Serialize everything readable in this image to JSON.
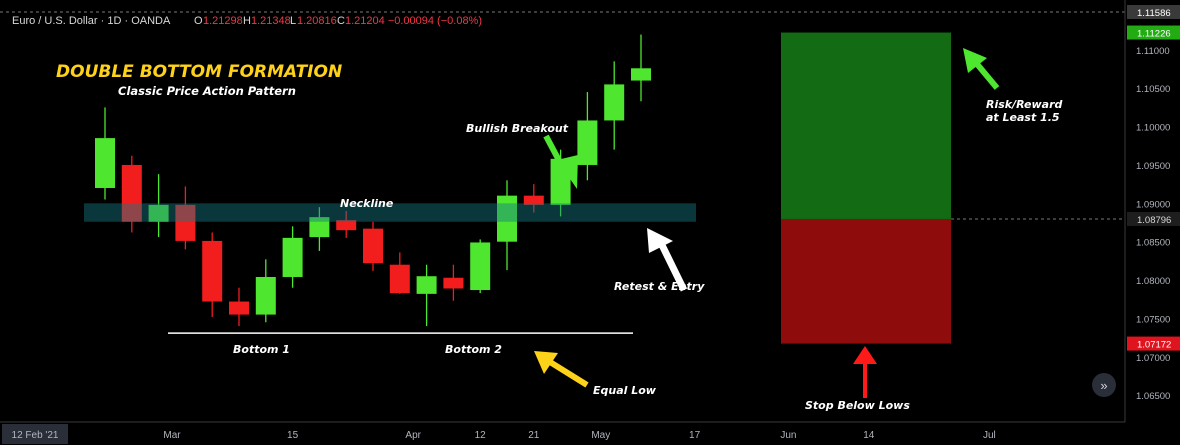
{
  "header": {
    "symbol": "Euro / U.S. Dollar · 1D · OANDA",
    "o_label": "O",
    "o_value": "1.21298",
    "h_label": "H",
    "h_value": "1.21348",
    "l_label": "L",
    "l_value": "1.20816",
    "c_label": "C",
    "c_value": "1.21204 −0.00094 (−0.08%)"
  },
  "colors": {
    "background": "#000000",
    "bull": "#4ee62f",
    "bear": "#f21d1d",
    "neckline_zone": "#137a84",
    "profit_zone": "#136b13",
    "loss_zone": "#8f0c0c",
    "title_yellow": "#ffd21a"
  },
  "chart_data": {
    "type": "candlestick",
    "title": "DOUBLE BOTTOM FORMATION",
    "subtitle": "Classic Price Action Pattern",
    "ylim": [
      1.0615,
      1.1165
    ],
    "y_ticks": [
      1.065,
      1.07,
      1.075,
      1.08,
      1.085,
      1.09,
      1.095,
      1.1,
      1.105,
      1.11
    ],
    "y_tick_labels": [
      "1.06500",
      "1.07000",
      "1.07500",
      "1.08000",
      "1.08500",
      "1.09000",
      "1.09500",
      "1.10000",
      "1.10500",
      "1.11000"
    ],
    "price_tags": [
      {
        "value": 1.11586,
        "label": "1.11586",
        "style": "top"
      },
      {
        "value": 1.11226,
        "label": "1.11226",
        "style": "green"
      },
      {
        "value": 1.08796,
        "label": "1.08796",
        "style": "dark"
      },
      {
        "value": 1.07172,
        "label": "1.07172",
        "style": "red"
      }
    ],
    "x_ticks": [
      {
        "index": 0,
        "label": "12 Feb '21",
        "boxed": true
      },
      {
        "index": 2.5,
        "label": "Mar"
      },
      {
        "index": 7,
        "label": "15"
      },
      {
        "index": 11.5,
        "label": "Apr"
      },
      {
        "index": 14,
        "label": "12"
      },
      {
        "index": 16,
        "label": "21"
      },
      {
        "index": 18.5,
        "label": "May"
      },
      {
        "index": 22,
        "label": "17"
      },
      {
        "index": 25.5,
        "label": "Jun"
      },
      {
        "index": 28.5,
        "label": "14"
      },
      {
        "index": 33,
        "label": "Jul"
      }
    ],
    "candles": [
      {
        "o": 1.092,
        "h": 1.1025,
        "l": 1.0905,
        "c": 1.0985
      },
      {
        "o": 1.095,
        "h": 1.0962,
        "l": 1.0862,
        "c": 1.0876
      },
      {
        "o": 1.0876,
        "h": 1.0938,
        "l": 1.0856,
        "c": 1.0898
      },
      {
        "o": 1.0898,
        "h": 1.0922,
        "l": 1.084,
        "c": 1.0851
      },
      {
        "o": 1.0851,
        "h": 1.0862,
        "l": 1.0752,
        "c": 1.0772
      },
      {
        "o": 1.0772,
        "h": 1.079,
        "l": 1.074,
        "c": 1.0755
      },
      {
        "o": 1.0755,
        "h": 1.0827,
        "l": 1.0745,
        "c": 1.0804
      },
      {
        "o": 1.0804,
        "h": 1.087,
        "l": 1.079,
        "c": 1.0855
      },
      {
        "o": 1.0856,
        "h": 1.0895,
        "l": 1.0838,
        "c": 1.0882
      },
      {
        "o": 1.0878,
        "h": 1.089,
        "l": 1.0855,
        "c": 1.0865
      },
      {
        "o": 1.0867,
        "h": 1.0876,
        "l": 1.0812,
        "c": 1.0822
      },
      {
        "o": 1.082,
        "h": 1.0836,
        "l": 1.0782,
        "c": 1.0783
      },
      {
        "o": 1.0782,
        "h": 1.082,
        "l": 1.074,
        "c": 1.0805
      },
      {
        "o": 1.0803,
        "h": 1.082,
        "l": 1.0773,
        "c": 1.0789
      },
      {
        "o": 1.0787,
        "h": 1.0853,
        "l": 1.0783,
        "c": 1.0849
      },
      {
        "o": 1.085,
        "h": 1.093,
        "l": 1.0813,
        "c": 1.091
      },
      {
        "o": 1.091,
        "h": 1.0925,
        "l": 1.0888,
        "c": 1.0898
      },
      {
        "o": 1.0898,
        "h": 1.097,
        "l": 1.0883,
        "c": 1.0958
      },
      {
        "o": 1.095,
        "h": 1.1045,
        "l": 1.093,
        "c": 1.1008
      },
      {
        "o": 1.1008,
        "h": 1.1085,
        "l": 1.097,
        "c": 1.1055
      },
      {
        "o": 1.106,
        "h": 1.112,
        "l": 1.1033,
        "c": 1.1076
      }
    ],
    "candle_dates": [
      "2021-02-22",
      "2021-02-26",
      "2021-03-02",
      "2021-03-08",
      "2021-03-12",
      "2021-03-16",
      "2021-03-20",
      "2021-03-24",
      "2021-03-28",
      "2021-04-01",
      "2021-04-05",
      "2021-04-09",
      "2021-04-13",
      "2021-04-17",
      "2021-04-21",
      "2021-04-27",
      "2021-05-01",
      "2021-05-05",
      "2021-05-09",
      "2021-05-13",
      "2021-05-17"
    ],
    "neckline_zone": {
      "low": 1.0876,
      "high": 1.09,
      "label": "Neckline"
    },
    "bottom_line": {
      "value": 1.074
    },
    "risk_reward": {
      "entry": 1.08796,
      "target": 1.11226,
      "stop": 1.07172
    },
    "annotations": {
      "bullish_breakout": "Bullish Breakout",
      "retest_entry": "Retest & Entry",
      "bottom1": "Bottom 1",
      "bottom2": "Bottom 2",
      "equal_low": "Equal Low",
      "risk_reward": [
        "Risk/Reward",
        "at Least 1.5"
      ],
      "stop_below_lows": "Stop Below Lows"
    }
  }
}
